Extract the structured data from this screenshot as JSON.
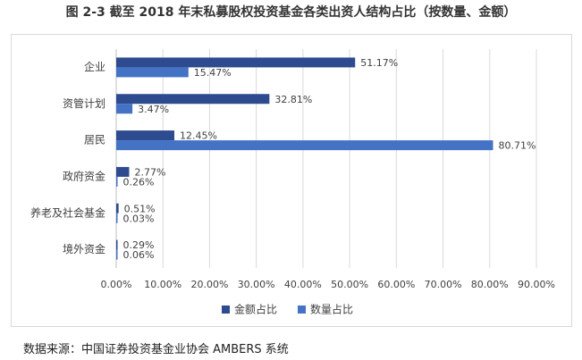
{
  "title": "图 2-3 截至 2018 年末私募股权投资基金各类出资人结构占比（按数量、金额）",
  "source": "数据来源：中国证券投资基金业协会 AMBERS 系统",
  "colors": {
    "amount": "#2e4b8f",
    "count": "#4472c4",
    "grid": "#d9d9d9",
    "axis": "#bfbfbf",
    "text": "#404040"
  },
  "chart_data": {
    "type": "bar",
    "orientation": "horizontal",
    "categories": [
      "企业",
      "资管计划",
      "居民",
      "政府资金",
      "养老及社会基金",
      "境外资金"
    ],
    "series": [
      {
        "name": "金额占比",
        "values": [
          51.17,
          32.81,
          12.45,
          2.77,
          0.51,
          0.29
        ],
        "labels": [
          "51.17%",
          "32.81%",
          "12.45%",
          "2.77%",
          "0.51%",
          "0.29%"
        ]
      },
      {
        "name": "数量占比",
        "values": [
          15.47,
          3.47,
          80.71,
          0.26,
          0.03,
          0.06
        ],
        "labels": [
          "15.47%",
          "3.47%",
          "80.71%",
          "0.26%",
          "0.03%",
          "0.06%"
        ]
      }
    ],
    "xlim": [
      0,
      90
    ],
    "xticks": [
      "0.00%",
      "10.00%",
      "20.00%",
      "30.00%",
      "40.00%",
      "50.00%",
      "60.00%",
      "70.00%",
      "80.00%",
      "90.00%"
    ],
    "grid": "vertical",
    "legend": "bottom"
  }
}
